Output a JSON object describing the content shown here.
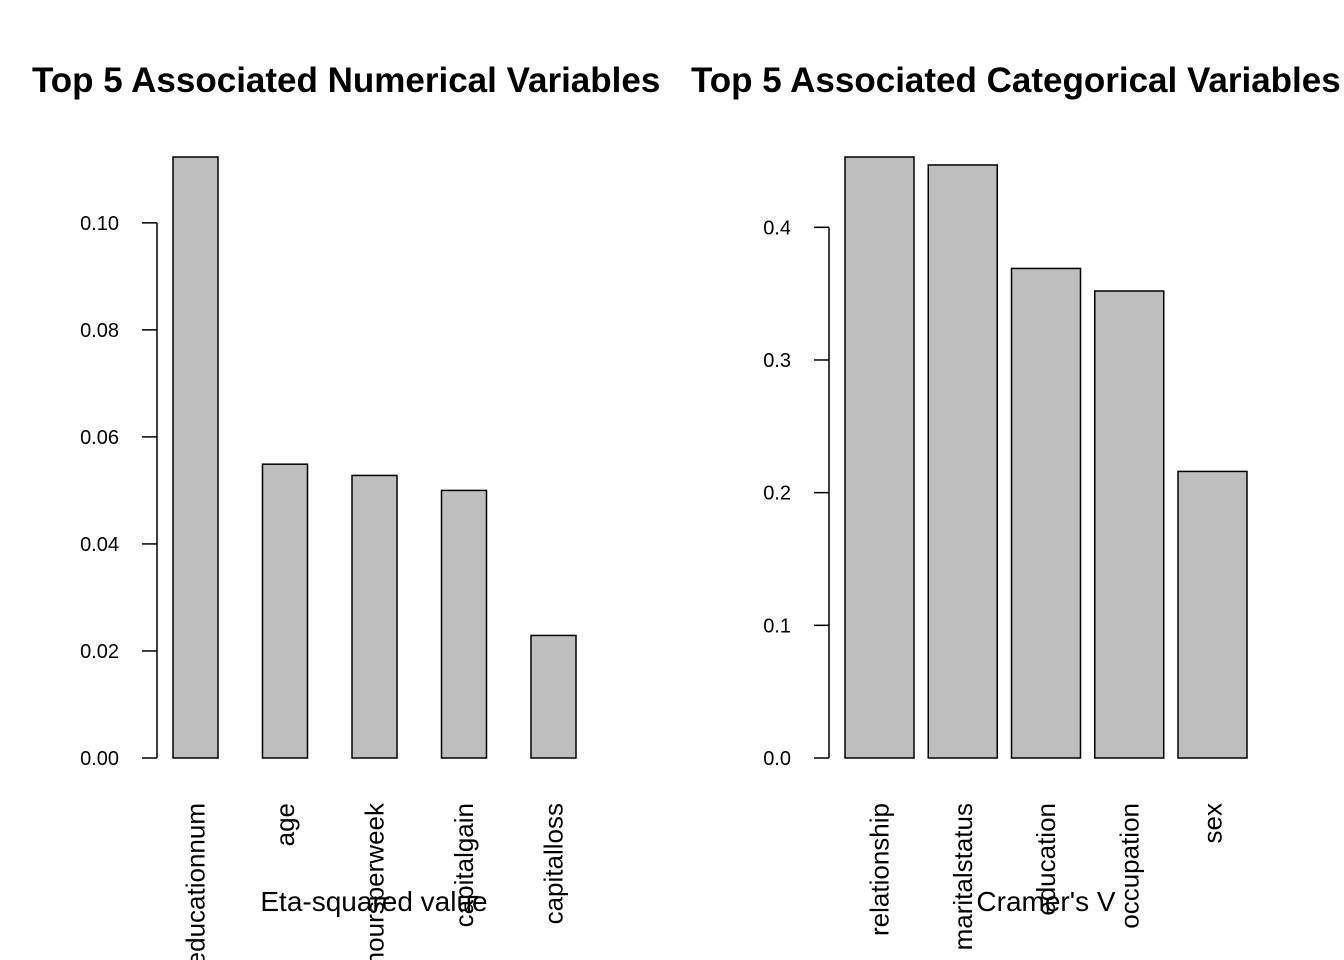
{
  "chart_data": [
    {
      "type": "bar",
      "title": "Top 5 Associated Numerical Variables",
      "xlabel": "Eta-squared value",
      "ylabel": "",
      "categories": [
        "educationnum",
        "age",
        "hoursperweek",
        "capitalgain",
        "capitalloss"
      ],
      "values": [
        0.1123,
        0.0549,
        0.0528,
        0.05,
        0.0229
      ],
      "ylim": [
        0,
        0.1123
      ],
      "yticks": [
        "0.00",
        "0.02",
        "0.04",
        "0.06",
        "0.08",
        "0.10"
      ],
      "grid": false,
      "bar_color": "#bebebe"
    },
    {
      "type": "bar",
      "title": "Top 5 Associated Categorical Variables",
      "xlabel": "Cramer's V",
      "ylabel": "",
      "categories": [
        "relationship",
        "maritalstatus",
        "education",
        "occupation",
        "sex"
      ],
      "values": [
        0.453,
        0.447,
        0.369,
        0.352,
        0.216
      ],
      "ylim": [
        0,
        0.453
      ],
      "yticks": [
        "0.0",
        "0.1",
        "0.2",
        "0.3",
        "0.4"
      ],
      "grid": false,
      "bar_color": "#bebebe"
    }
  ]
}
